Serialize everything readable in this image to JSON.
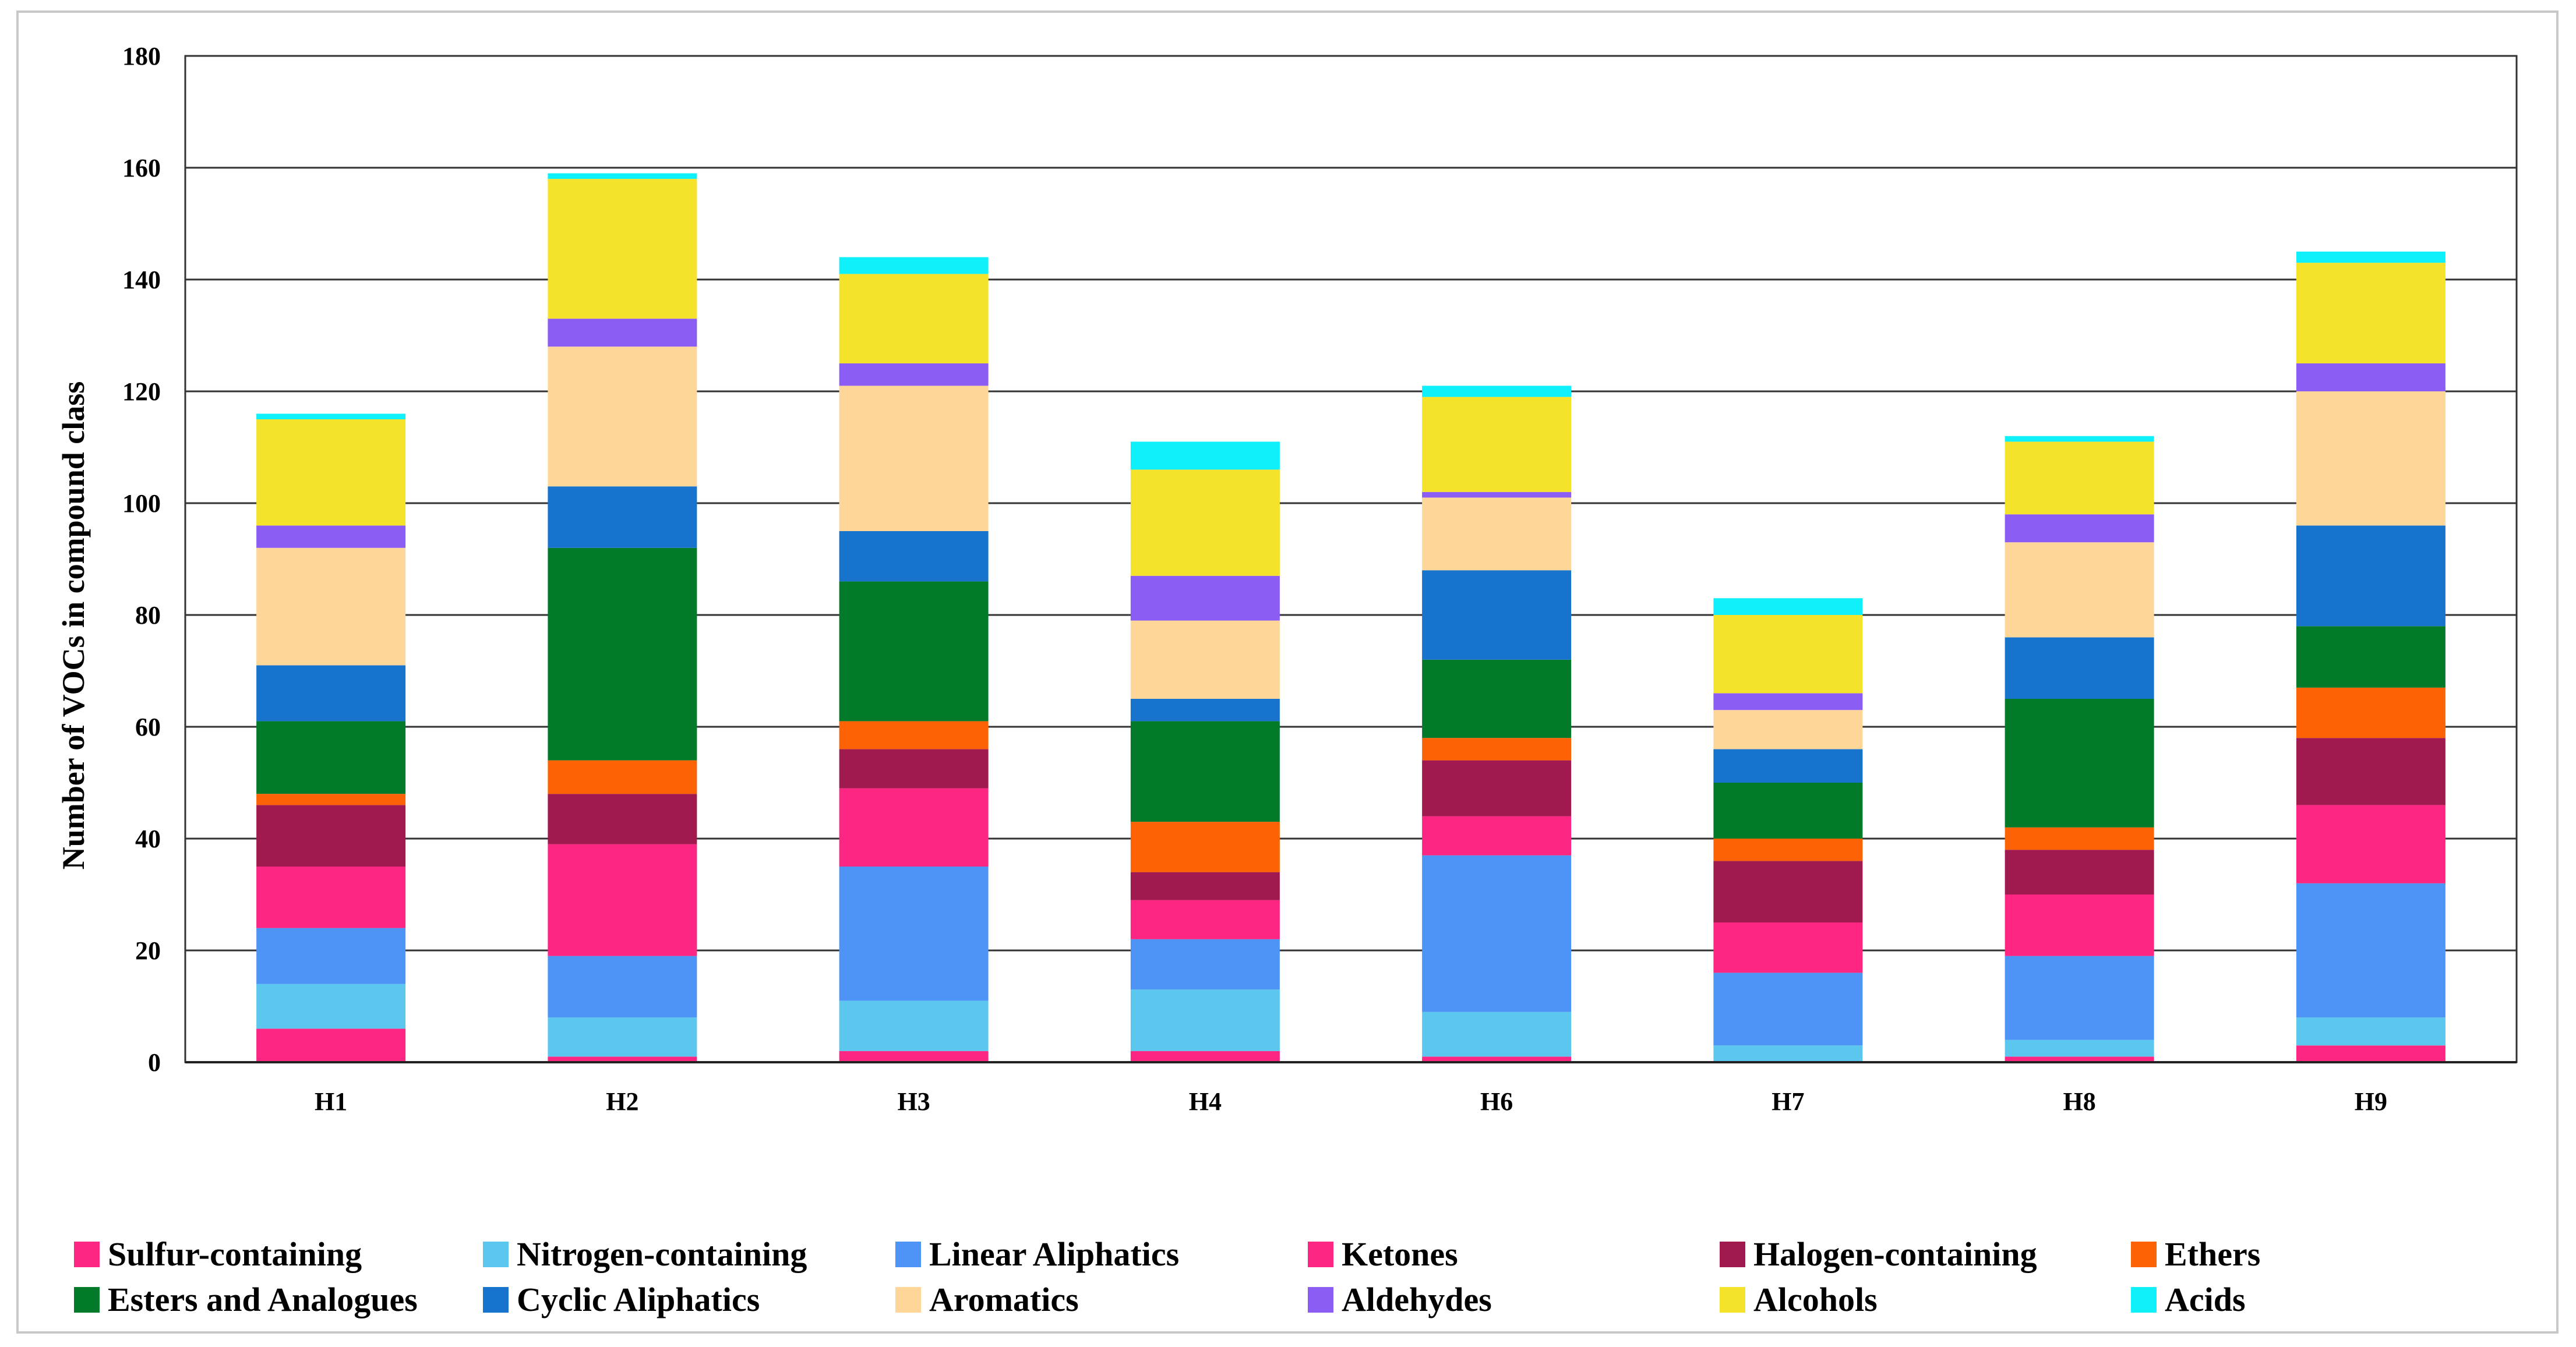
{
  "chart_data": {
    "type": "bar",
    "stacked": true,
    "title": "",
    "xlabel": "",
    "ylabel": "Number of VOCs in compound class",
    "ylim": [
      0,
      180
    ],
    "yticks": [
      0,
      20,
      40,
      60,
      80,
      100,
      120,
      140,
      160,
      180
    ],
    "grid": true,
    "legend_position": "bottom",
    "categories": [
      "H1",
      "H2",
      "H3",
      "H4",
      "H6",
      "H7",
      "H8",
      "H9"
    ],
    "series": [
      {
        "name": "Sulfur-containing",
        "color": "#fe2683",
        "values": [
          6,
          1,
          2,
          2,
          1,
          0,
          1,
          3
        ]
      },
      {
        "name": "Nitrogen-containing",
        "color": "#5bc7ef",
        "values": [
          8,
          7,
          9,
          11,
          8,
          3,
          3,
          5
        ]
      },
      {
        "name": "Linear Aliphatics",
        "color": "#4e94f6",
        "values": [
          10,
          11,
          24,
          9,
          28,
          13,
          15,
          24
        ]
      },
      {
        "name": "Ketones",
        "color": "#fe2683",
        "values": [
          11,
          20,
          14,
          7,
          7,
          9,
          11,
          14
        ]
      },
      {
        "name": "Halogen-containing",
        "color": "#a0194f",
        "values": [
          11,
          9,
          7,
          5,
          10,
          11,
          8,
          12
        ]
      },
      {
        "name": "Ethers",
        "color": "#fd6304",
        "values": [
          2,
          6,
          5,
          9,
          4,
          4,
          4,
          9
        ]
      },
      {
        "name": "Esters and Analogues",
        "color": "#027a2a",
        "values": [
          13,
          38,
          25,
          18,
          14,
          10,
          23,
          11
        ]
      },
      {
        "name": "Cyclic Aliphatics",
        "color": "#1873cc",
        "values": [
          10,
          11,
          9,
          4,
          16,
          6,
          11,
          18
        ]
      },
      {
        "name": "Aromatics",
        "color": "#fdd698",
        "values": [
          21,
          25,
          26,
          14,
          13,
          7,
          17,
          24
        ]
      },
      {
        "name": "Aldehydes",
        "color": "#8b5df5",
        "values": [
          4,
          5,
          4,
          8,
          1,
          3,
          5,
          5
        ]
      },
      {
        "name": "Alcohols",
        "color": "#f5e22b",
        "values": [
          19,
          25,
          16,
          19,
          17,
          14,
          13,
          18
        ]
      },
      {
        "name": "Acids",
        "color": "#0ff0fa",
        "values": [
          1,
          1,
          3,
          5,
          2,
          3,
          1,
          2
        ]
      }
    ]
  }
}
